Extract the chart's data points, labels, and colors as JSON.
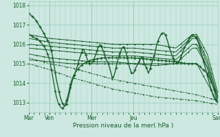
{
  "xlabel": "Pression niveau de la mer( hPa )",
  "bg_color": "#cce8e0",
  "plot_bg_color": "#cce8e0",
  "grid_color": "#99ccbb",
  "line_color": "#1a5c2a",
  "ylim": [
    1012.5,
    1018.2
  ],
  "yticks": [
    1013,
    1014,
    1015,
    1016,
    1017,
    1018
  ],
  "xtick_labels": [
    "Mar",
    "Ven",
    "Mer",
    "Jeu",
    "Sam"
  ],
  "xtick_positions": [
    0.0,
    1.0,
    3.0,
    5.0,
    9.0
  ]
}
